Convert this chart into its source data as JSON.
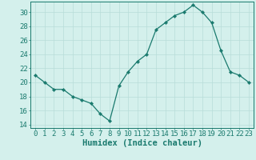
{
  "x": [
    0,
    1,
    2,
    3,
    4,
    5,
    6,
    7,
    8,
    9,
    10,
    11,
    12,
    13,
    14,
    15,
    16,
    17,
    18,
    19,
    20,
    21,
    22,
    23
  ],
  "y": [
    21,
    20,
    19,
    19,
    18,
    17.5,
    17,
    15.5,
    14.5,
    19.5,
    21.5,
    23,
    24,
    27.5,
    28.5,
    29.5,
    30,
    31,
    30,
    28.5,
    24.5,
    21.5,
    21,
    20
  ],
  "line_color": "#1a7a6e",
  "marker": "D",
  "marker_size": 2.2,
  "bg_color": "#d4f0ec",
  "grid_color": "#b8ddd8",
  "xlabel": "Humidex (Indice chaleur)",
  "xlim": [
    -0.5,
    23.5
  ],
  "ylim": [
    13.5,
    31.5
  ],
  "yticks": [
    14,
    16,
    18,
    20,
    22,
    24,
    26,
    28,
    30
  ],
  "xtick_labels": [
    "0",
    "1",
    "2",
    "3",
    "4",
    "5",
    "6",
    "7",
    "8",
    "9",
    "10",
    "11",
    "12",
    "13",
    "14",
    "15",
    "16",
    "17",
    "18",
    "19",
    "20",
    "21",
    "22",
    "23"
  ],
  "xlabel_fontsize": 7.5,
  "tick_fontsize": 6.5,
  "axis_color": "#1a7a6e",
  "spine_color": "#1a7a6e"
}
